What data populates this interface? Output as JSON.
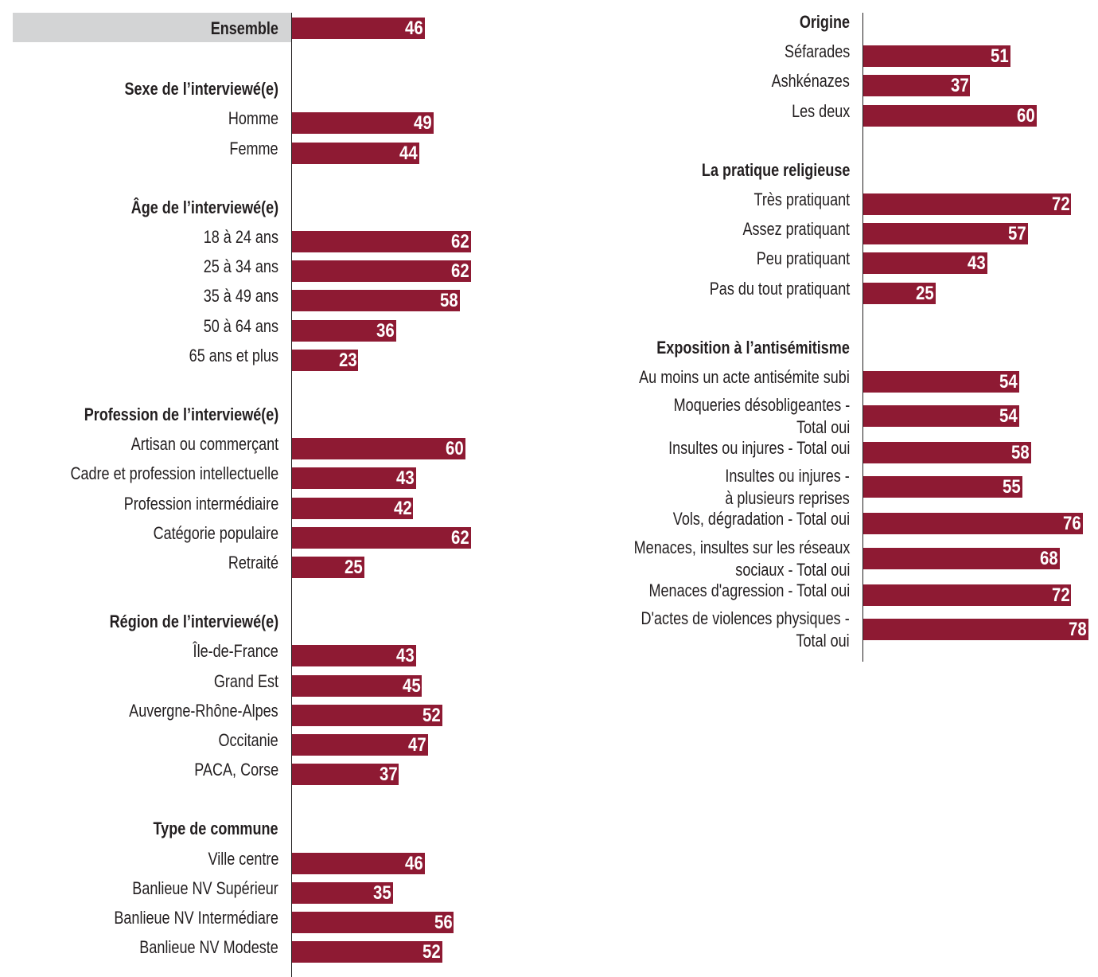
{
  "chart_data": {
    "type": "bar",
    "orientation": "horizontal",
    "value_unit": "percent",
    "bar_color": "#8e1a33",
    "highlight_color": "#d3d4d5",
    "panels": [
      {
        "name": "left",
        "groups": [
          {
            "title": "Ensemble",
            "highlight": true,
            "items": [
              {
                "label": "",
                "value": 46
              }
            ]
          },
          {
            "title": "Sexe de l’interviewé(e)",
            "items": [
              {
                "label": "Homme",
                "value": 49
              },
              {
                "label": "Femme",
                "value": 44
              }
            ]
          },
          {
            "title": "Âge de l’interviewé(e)",
            "items": [
              {
                "label": "18 à 24 ans",
                "value": 62
              },
              {
                "label": "25 à 34 ans",
                "value": 62
              },
              {
                "label": "35 à 49 ans",
                "value": 58
              },
              {
                "label": "50 à 64 ans",
                "value": 36
              },
              {
                "label": "65 ans et plus",
                "value": 23
              }
            ]
          },
          {
            "title": "Profession de l’interviewé(e)",
            "items": [
              {
                "label": "Artisan ou commerçant",
                "value": 60
              },
              {
                "label": "Cadre et profession intellectuelle",
                "value": 43
              },
              {
                "label": "Profession intermédiaire",
                "value": 42
              },
              {
                "label": "Catégorie populaire",
                "value": 62
              },
              {
                "label": "Retraité",
                "value": 25
              }
            ]
          },
          {
            "title": "Région de l’interviewé(e)",
            "items": [
              {
                "label": "Île-de-France",
                "value": 43
              },
              {
                "label": "Grand Est",
                "value": 45
              },
              {
                "label": "Auvergne-Rhône-Alpes",
                "value": 52
              },
              {
                "label": "Occitanie",
                "value": 47
              },
              {
                "label": "PACA, Corse",
                "value": 37
              }
            ]
          },
          {
            "title": "Type de commune",
            "items": [
              {
                "label": "Ville centre",
                "value": 46
              },
              {
                "label": "Banlieue NV Supérieur",
                "value": 35
              },
              {
                "label": "Banlieue NV Intermédiare",
                "value": 56
              },
              {
                "label": "Banlieue NV Modeste",
                "value": 52
              }
            ]
          }
        ]
      },
      {
        "name": "right",
        "groups": [
          {
            "title": "Origine",
            "items": [
              {
                "label": "Séfarades",
                "value": 51
              },
              {
                "label": "Ashkénazes",
                "value": 37
              },
              {
                "label": "Les deux",
                "value": 60
              }
            ]
          },
          {
            "title": "La pratique religieuse",
            "items": [
              {
                "label": "Très pratiquant",
                "value": 72
              },
              {
                "label": "Assez pratiquant",
                "value": 57
              },
              {
                "label": "Peu pratiquant",
                "value": 43
              },
              {
                "label": "Pas du tout pratiquant",
                "value": 25
              }
            ]
          },
          {
            "title": "Exposition à l’antisémitisme",
            "items": [
              {
                "label": "Au moins un acte antisémite subi",
                "value": 54
              },
              {
                "label": "Moqueries désobligeantes -\nTotal oui",
                "value": 54
              },
              {
                "label": "Insultes ou injures - Total oui",
                "value": 58
              },
              {
                "label": "Insultes ou injures -\nà plusieurs reprises",
                "value": 55
              },
              {
                "label": "Vols, dégradation - Total oui",
                "value": 76
              },
              {
                "label": "Menaces, insultes sur les réseaux\nsociaux - Total oui",
                "value": 68
              },
              {
                "label": "Menaces d'agression - Total oui",
                "value": 72
              },
              {
                "label": "D'actes de violences physiques -\nTotal oui",
                "value": 78
              }
            ]
          }
        ]
      }
    ]
  }
}
